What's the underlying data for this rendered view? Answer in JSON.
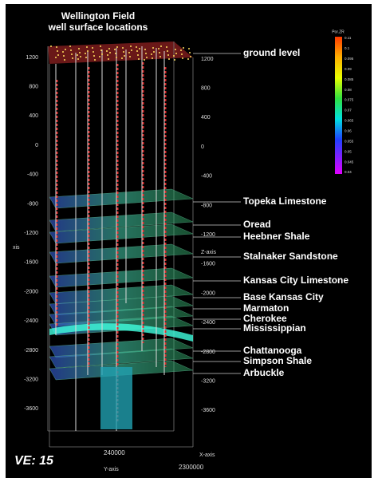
{
  "title": [
    "Wellington Field",
    "well surface locations"
  ],
  "left_axis": {
    "label": "xis",
    "ticks": [
      "1200",
      "800",
      "400",
      "0",
      "-400",
      "-800",
      "-1200",
      "-1600",
      "-2000",
      "-2400",
      "-2800",
      "-3200",
      "-3600"
    ]
  },
  "right_axis": {
    "label": "Z-axis",
    "ticks": [
      "1200",
      "800",
      "400",
      "0",
      "-400",
      "-800",
      "-1200",
      "-1600",
      "-2000",
      "-2400",
      "-2800",
      "-3200",
      "-3600"
    ]
  },
  "bottom": {
    "y_label": "Y-axis",
    "y_value": "240000",
    "x_label": "X-axis",
    "x_value": "2300000"
  },
  "layers": [
    "ground level",
    "Topeka Limestone",
    "Oread",
    "Heebner Shale",
    "Stalnaker Sandstone",
    "Kansas City Limestone",
    "Base Kansas City",
    "Marmaton",
    "Cherokee",
    "Mississippian",
    "Chattanooga",
    "Simpson Shale",
    "Arbuckle"
  ],
  "colorbar": {
    "title": "Por.ZR",
    "labels": [
      "0.11",
      "0.1",
      "0.095",
      "0.09",
      "0.085",
      "0.08",
      "0.075",
      "0.07",
      "0.065",
      "0.06",
      "0.055",
      "0.05",
      "0.045",
      "0.04"
    ]
  },
  "ve": "VE: 15"
}
